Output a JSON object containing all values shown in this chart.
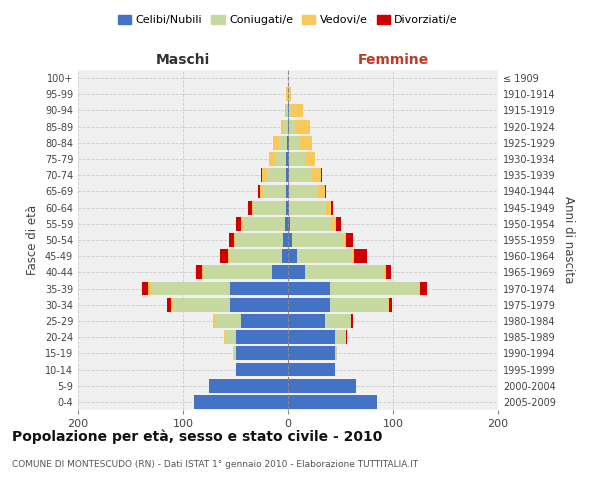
{
  "age_groups": [
    "0-4",
    "5-9",
    "10-14",
    "15-19",
    "20-24",
    "25-29",
    "30-34",
    "35-39",
    "40-44",
    "45-49",
    "50-54",
    "55-59",
    "60-64",
    "65-69",
    "70-74",
    "75-79",
    "80-84",
    "85-89",
    "90-94",
    "95-99",
    "100+"
  ],
  "birth_years": [
    "2005-2009",
    "2000-2004",
    "1995-1999",
    "1990-1994",
    "1985-1989",
    "1980-1984",
    "1975-1979",
    "1970-1974",
    "1965-1969",
    "1960-1964",
    "1955-1959",
    "1950-1954",
    "1945-1949",
    "1940-1944",
    "1935-1939",
    "1930-1934",
    "1925-1929",
    "1920-1924",
    "1915-1919",
    "1910-1914",
    "≤ 1909"
  ],
  "male_celibe": [
    90,
    75,
    50,
    50,
    50,
    45,
    55,
    55,
    15,
    6,
    5,
    3,
    2,
    2,
    2,
    2,
    1,
    0,
    0,
    0,
    0
  ],
  "male_coniugato": [
    0,
    0,
    0,
    2,
    10,
    25,
    55,
    75,
    65,
    50,
    45,
    40,
    30,
    22,
    18,
    10,
    8,
    4,
    2,
    1,
    0
  ],
  "male_vedovo": [
    0,
    0,
    0,
    0,
    1,
    1,
    1,
    3,
    2,
    1,
    1,
    2,
    2,
    3,
    5,
    6,
    5,
    3,
    1,
    1,
    0
  ],
  "male_divorziato": [
    0,
    0,
    0,
    0,
    0,
    0,
    4,
    6,
    6,
    8,
    5,
    5,
    4,
    2,
    1,
    0,
    0,
    0,
    0,
    0,
    0
  ],
  "female_celibe": [
    85,
    65,
    45,
    45,
    45,
    35,
    40,
    40,
    16,
    9,
    4,
    2,
    1,
    1,
    1,
    1,
    1,
    1,
    1,
    0,
    0
  ],
  "female_coniugata": [
    0,
    0,
    0,
    2,
    10,
    25,
    55,
    85,
    75,
    52,
    48,
    40,
    35,
    28,
    22,
    15,
    10,
    6,
    3,
    0,
    0
  ],
  "female_vedova": [
    0,
    0,
    0,
    0,
    0,
    0,
    1,
    1,
    2,
    2,
    3,
    4,
    5,
    6,
    8,
    10,
    12,
    14,
    10,
    3,
    0
  ],
  "female_divorziata": [
    0,
    0,
    0,
    0,
    1,
    2,
    3,
    6,
    5,
    12,
    7,
    4,
    2,
    1,
    1,
    0,
    0,
    0,
    0,
    0,
    0
  ],
  "colors": {
    "celibe": "#4472C4",
    "coniugato": "#c5d9a0",
    "vedovo": "#F9C85B",
    "divorziato": "#CC0000"
  },
  "title": "Popolazione per età, sesso e stato civile - 2010",
  "subtitle": "COMUNE DI MONTESCUDO (RN) - Dati ISTAT 1° gennaio 2010 - Elaborazione TUTTITALIA.IT",
  "maschi_label": "Maschi",
  "femmine_label": "Femmine",
  "ylabel_left": "Fasce di età",
  "ylabel_right": "Anni di nascita",
  "xlim": 200,
  "bg_color": "#ffffff",
  "plot_bg_color": "#f0f0f0",
  "grid_color": "#cccccc",
  "legend_labels": [
    "Celibi/Nubili",
    "Coniugati/e",
    "Vedovi/e",
    "Divorziati/e"
  ]
}
